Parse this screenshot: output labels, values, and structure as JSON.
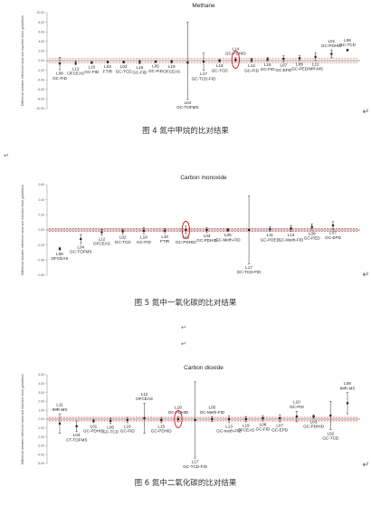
{
  "captions": {
    "fig4": "图 4 氮中甲烷的比对结果",
    "fig5": "图 5 氮中一氧化碳的比对结果",
    "fig6": "图 6 氮中二氧化碳的比对结果"
  },
  "paragraph_marks": [
    "↵",
    "↵",
    "↵",
    "↵",
    "↵",
    "↵"
  ],
  "chart_data": [
    {
      "type": "scatter",
      "title": "Methane",
      "ylabel": "Difference between reference value and reported result (μmol/mol)",
      "ylim": [
        -10,
        10
      ],
      "yticks": [
        "10.00",
        "8.00",
        "6.00",
        "4.00",
        "2.00",
        "0.00",
        "-2.00",
        "-4.00",
        "-6.00",
        "-8.00",
        "-10.00"
      ],
      "tick_count": 11,
      "reference_band": [
        -0.4,
        0.4
      ],
      "highlighted": "L14",
      "points": [
        {
          "label": "L08\nGC-FID",
          "y": -0.6,
          "lo": -1.9,
          "hi": 0.7,
          "label_pos": "below"
        },
        {
          "label": "L12\nOFCEAS",
          "y": -0.5,
          "lo": -0.9,
          "hi": -0.1,
          "label_pos": "below"
        },
        {
          "label": "L10\nGC-FID",
          "y": -0.4,
          "lo": -0.6,
          "hi": -0.2,
          "label_pos": "below"
        },
        {
          "label": "L03\nFTIR",
          "y": -0.3,
          "lo": -0.5,
          "hi": -0.1,
          "label_pos": "below"
        },
        {
          "label": "L02\nGC-TCD",
          "y": -0.3,
          "lo": -0.5,
          "hi": -0.1,
          "label_pos": "below"
        },
        {
          "label": "L15\nGC-FID",
          "y": -0.3,
          "lo": -0.7,
          "hi": 0.1,
          "label_pos": "below"
        },
        {
          "label": "L05\nGC-FID",
          "y": -0.2,
          "lo": -0.4,
          "hi": 0.0,
          "label_pos": "below"
        },
        {
          "label": "L19\nOFCEAS",
          "y": -0.2,
          "lo": -0.5,
          "hi": 0.1,
          "label_pos": "below"
        },
        {
          "label": "L04\nGC-TOFMS",
          "y": -0.4,
          "lo": -8.0,
          "hi": 8.0,
          "label_pos": "below"
        },
        {
          "label": "L17\nGC-TCD-FID",
          "y": -0.2,
          "lo": -2.0,
          "hi": 1.6,
          "label_pos": "below"
        },
        {
          "label": "L18\nGC-TCD",
          "y": 0.0,
          "lo": -0.3,
          "hi": 0.3,
          "label_pos": "below"
        },
        {
          "label": "L14\nGC-PDHID",
          "y": 0.2,
          "lo": -0.2,
          "hi": 0.6,
          "label_pos": "above"
        },
        {
          "label": "L13\nGC-FID",
          "y": 0.1,
          "lo": -0.3,
          "hi": 0.5,
          "label_pos": "below"
        },
        {
          "label": "L16\nGC-FID",
          "y": 0.3,
          "lo": -0.1,
          "hi": 0.7,
          "label_pos": "below"
        },
        {
          "label": "L07\nGC-EPD",
          "y": 0.4,
          "lo": -0.2,
          "hi": 1.0,
          "label_pos": "below"
        },
        {
          "label": "L09\nGC-PED",
          "y": 0.5,
          "lo": 0.0,
          "hi": 1.0,
          "label_pos": "below"
        },
        {
          "label": "L11\nIMR-MS",
          "y": 0.8,
          "lo": 0.0,
          "hi": 1.6,
          "label_pos": "below"
        },
        {
          "label": "L01\nGC-PDHID",
          "y": 1.4,
          "lo": 0.6,
          "hi": 2.2,
          "label_pos": "above"
        },
        {
          "label": "L06\nGC-TCD",
          "y": 2.2,
          "lo": 2.0,
          "hi": 2.4,
          "label_pos": "above"
        }
      ]
    },
    {
      "type": "scatter",
      "title": "Carbon monoxide",
      "ylabel": "Difference between reference value and reported result (μmol/mol)",
      "ylim": [
        -0.6,
        0.6
      ],
      "yticks": [
        "0.60",
        "0.40",
        "0.20",
        "0.00",
        "-0.20",
        "-0.40",
        "-0.60"
      ],
      "tick_count": 7,
      "reference_band": [
        -0.02,
        0.02
      ],
      "highlighted": "L16",
      "points": [
        {
          "label": "L08\nOFCEAS",
          "y": -0.25,
          "lo": -0.27,
          "hi": -0.23,
          "label_pos": "below"
        },
        {
          "label": "L04\nGC-TOFMS",
          "y": -0.12,
          "lo": -0.18,
          "hi": -0.06,
          "label_pos": "below"
        },
        {
          "label": "L12\nOFCEAS",
          "y": -0.03,
          "lo": -0.07,
          "hi": 0.01,
          "label_pos": "below"
        },
        {
          "label": "L02\nGC-TCD",
          "y": -0.02,
          "lo": -0.05,
          "hi": 0.01,
          "label_pos": "below"
        },
        {
          "label": "L18\nGC-FID",
          "y": -0.01,
          "lo": -0.05,
          "hi": 0.03,
          "label_pos": "below"
        },
        {
          "label": "L10\nFTIR",
          "y": -0.01,
          "lo": -0.04,
          "hi": 0.02,
          "label_pos": "below"
        },
        {
          "label": "L16\nGC-PDHID",
          "y": 0.0,
          "lo": -0.05,
          "hi": 0.05,
          "label_pos": "below"
        },
        {
          "label": "L03\nGC-PDHID",
          "y": 0.0,
          "lo": -0.03,
          "hi": 0.03,
          "label_pos": "below"
        },
        {
          "label": "L05\nGC-Meth-FID",
          "y": 0.0,
          "lo": -0.02,
          "hi": 0.02,
          "label_pos": "below"
        },
        {
          "label": "L17\nGC-TCD-FID",
          "y": 0.0,
          "lo": -0.45,
          "hi": 0.45,
          "label_pos": "below"
        },
        {
          "label": "L11\nGC-PDED",
          "y": 0.01,
          "lo": -0.02,
          "hi": 0.04,
          "label_pos": "below"
        },
        {
          "label": "L13\nGC-Meth-FID",
          "y": 0.02,
          "lo": -0.02,
          "hi": 0.06,
          "label_pos": "below"
        },
        {
          "label": "L09\nGC-PED",
          "y": 0.04,
          "lo": 0.0,
          "hi": 0.08,
          "label_pos": "below"
        },
        {
          "label": "L07\nGC-EPD",
          "y": 0.06,
          "lo": 0.01,
          "hi": 0.11,
          "label_pos": "below"
        }
      ]
    },
    {
      "type": "scatter",
      "title": "Carbon dioxide",
      "ylabel": "Difference between reference value and reported result (μmol/mol)",
      "ylim": [
        -5.0,
        5.0
      ],
      "yticks": [
        "5.00",
        "4.00",
        "3.00",
        "2.00",
        "1.00",
        "0.00",
        "-1.00",
        "-2.00",
        "-3.00",
        "-4.00",
        "-5.00"
      ],
      "tick_count": 11,
      "reference_band": [
        -0.2,
        0.2
      ],
      "highlighted": "L18",
      "points": [
        {
          "label": "L11\nIMR-MS",
          "y": -0.5,
          "lo": -1.6,
          "hi": 0.6,
          "label_pos": "above"
        },
        {
          "label": "L04\nCT-TOFMS",
          "y": -0.8,
          "lo": -1.4,
          "hi": -0.2,
          "label_pos": "below"
        },
        {
          "label": "L01\nGC-PDHID",
          "y": -0.2,
          "lo": -0.4,
          "hi": 0.0,
          "label_pos": "below"
        },
        {
          "label": "L06\nGC-TCD",
          "y": -0.2,
          "lo": -0.5,
          "hi": 0.1,
          "label_pos": "below"
        },
        {
          "label": "L16\nGC-FID",
          "y": -0.1,
          "lo": -0.4,
          "hi": 0.2,
          "label_pos": "below"
        },
        {
          "label": "L12\nOFCEAS",
          "y": 0.1,
          "lo": -1.6,
          "hi": 1.8,
          "label_pos": "above"
        },
        {
          "label": "L15\nGC-PDHID",
          "y": -0.1,
          "lo": -0.4,
          "hi": 0.2,
          "label_pos": "below"
        },
        {
          "label": "L18\nGC-PDHID",
          "y": 0.0,
          "lo": -0.3,
          "hi": 0.3,
          "label_pos": "above"
        },
        {
          "label": "L17\nGC-TCD-FID",
          "y": -0.1,
          "lo": -4.4,
          "hi": 4.2,
          "label_pos": "below"
        },
        {
          "label": "L05\nGC-Meth-FID",
          "y": 0.0,
          "lo": -0.3,
          "hi": 0.3,
          "label_pos": "above"
        },
        {
          "label": "L13\nGC-meth-FID",
          "y": 0.0,
          "lo": -0.4,
          "hi": 0.4,
          "label_pos": "below"
        },
        {
          "label": "L19\nOFCEAS",
          "y": 0.0,
          "lo": -0.3,
          "hi": 0.3,
          "label_pos": "below"
        },
        {
          "label": "L08\nGC-FID",
          "y": 0.1,
          "lo": -0.2,
          "hi": 0.4,
          "label_pos": "below"
        },
        {
          "label": "L07\nGC-EPD",
          "y": 0.1,
          "lo": -0.3,
          "hi": 0.5,
          "label_pos": "below"
        },
        {
          "label": "L10\nGC-FID",
          "y": 0.3,
          "lo": -0.3,
          "hi": 0.9,
          "label_pos": "above"
        },
        {
          "label": "L03\nGC-PDHID",
          "y": 0.3,
          "lo": 0.1,
          "hi": 0.5,
          "label_pos": "below"
        },
        {
          "label": "L02\nGC-TCD",
          "y": 0.4,
          "lo": -1.2,
          "hi": 2.0,
          "label_pos": "below"
        },
        {
          "label": "L09\nIMR-MS",
          "y": 1.8,
          "lo": 0.6,
          "hi": 3.0,
          "label_pos": "above"
        }
      ]
    }
  ]
}
